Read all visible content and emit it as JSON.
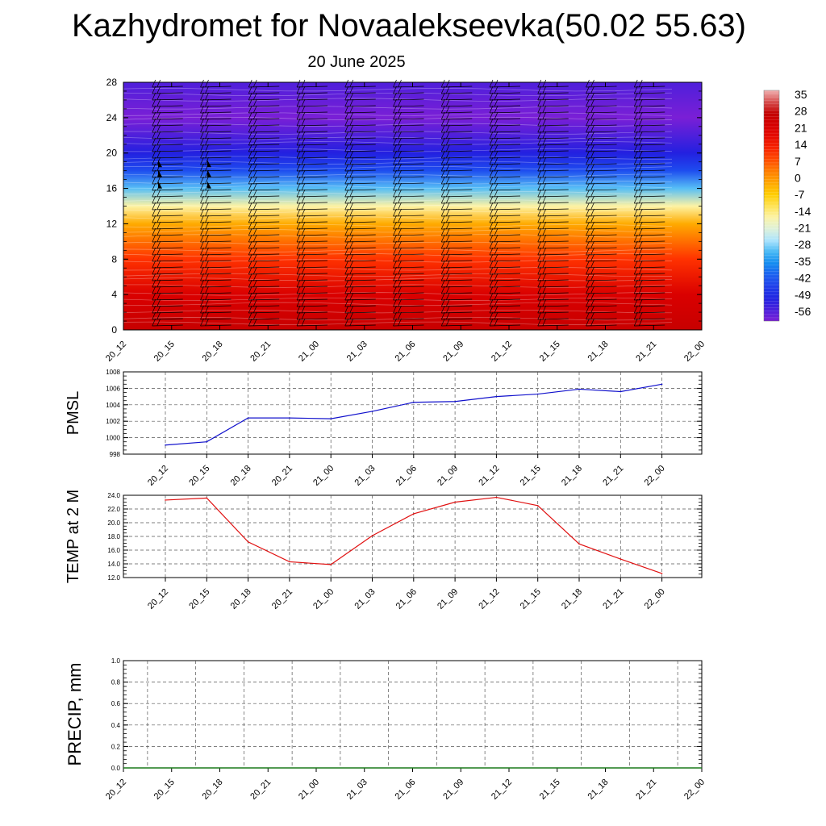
{
  "page": {
    "title": "Kazhydromet for Novaalekseevka(50.02 55.63)",
    "subtitle": "20 June 2025"
  },
  "colors": {
    "pmsl_line": "#1010cc",
    "temp_line": "#e01010",
    "precip_line": "#1a7a1a",
    "gridline": "#555555",
    "colormap": [
      "#7a1fd6",
      "#2020e0",
      "#1e50f0",
      "#10a0f0",
      "#c8f0ff",
      "#fff3a0",
      "#ffd000",
      "#ff8a00",
      "#ff3000",
      "#e00000",
      "#c00000",
      "#f0b0b0"
    ]
  },
  "chart_data": [
    {
      "type": "heatmap",
      "title": "",
      "xlabel": "",
      "ylabel": "",
      "x_ticks": [
        "20_12",
        "20_15",
        "20_18",
        "20_21",
        "21_00",
        "21_03",
        "21_06",
        "21_09",
        "21_12",
        "21_15",
        "21_18",
        "21_21",
        "22_00"
      ],
      "y_ticks": [
        "0",
        "4",
        "8",
        "12",
        "16",
        "20",
        "24",
        "28"
      ],
      "ylim": [
        0,
        28
      ],
      "colorbar": {
        "labels": [
          "35",
          "28",
          "21",
          "14",
          "7",
          "0",
          "-7",
          "-14",
          "-21",
          "-28",
          "-35",
          "-42",
          "-49",
          "-56"
        ],
        "range": [
          -56,
          35
        ]
      },
      "temperature_profile": [
        {
          "level": 0,
          "value": 25
        },
        {
          "level": 4,
          "value": 20
        },
        {
          "level": 8,
          "value": 10
        },
        {
          "level": 12,
          "value": -2
        },
        {
          "level": 14,
          "value": -15
        },
        {
          "level": 16,
          "value": -28
        },
        {
          "level": 18,
          "value": -40
        },
        {
          "level": 20,
          "value": -48
        },
        {
          "level": 24,
          "value": -56
        },
        {
          "level": 28,
          "value": -52
        }
      ],
      "overlay": "wind barbs"
    },
    {
      "type": "line",
      "ylabel": "PMSL",
      "ylim": [
        998,
        1008
      ],
      "y_ticks": [
        "998",
        "1000",
        "1002",
        "1004",
        "1006",
        "1008"
      ],
      "categories": [
        "20_12",
        "20_15",
        "20_18",
        "20_21",
        "21_00",
        "21_03",
        "21_06",
        "21_09",
        "21_12",
        "21_15",
        "21_18",
        "21_21",
        "22_00"
      ],
      "series": [
        {
          "values": [
            999.1,
            999.5,
            1002.4,
            1002.4,
            1002.3,
            1003.2,
            1004.3,
            1004.4,
            1005.0,
            1005.3,
            1005.9,
            1005.6,
            1006.5
          ]
        }
      ]
    },
    {
      "type": "line",
      "ylabel": "TEMP at 2 M",
      "ylim": [
        12,
        24
      ],
      "y_ticks": [
        "12.0",
        "14.0",
        "16.0",
        "18.0",
        "20.0",
        "22.0",
        "24.0"
      ],
      "categories": [
        "20_12",
        "20_15",
        "20_18",
        "20_21",
        "21_00",
        "21_03",
        "21_06",
        "21_09",
        "21_12",
        "21_15",
        "21_18",
        "21_21",
        "22_00"
      ],
      "series": [
        {
          "values": [
            23.3,
            23.6,
            17.2,
            14.3,
            13.9,
            18.1,
            21.3,
            23.0,
            23.7,
            22.5,
            16.9,
            14.7,
            12.6
          ]
        }
      ]
    },
    {
      "type": "line",
      "ylabel": "PRECIP, mm",
      "ylim": [
        0,
        1
      ],
      "y_ticks": [
        "0.0",
        "0.2",
        "0.4",
        "0.6",
        "0.8",
        "1.0"
      ],
      "categories": [
        "20_12",
        "20_15",
        "20_18",
        "20_21",
        "21_00",
        "21_03",
        "21_06",
        "21_09",
        "21_12",
        "21_15",
        "21_18",
        "21_21",
        "22_00"
      ],
      "series": [
        {
          "values": [
            0,
            0,
            0,
            0,
            0,
            0,
            0,
            0,
            0,
            0,
            0,
            0,
            0
          ]
        }
      ]
    }
  ]
}
